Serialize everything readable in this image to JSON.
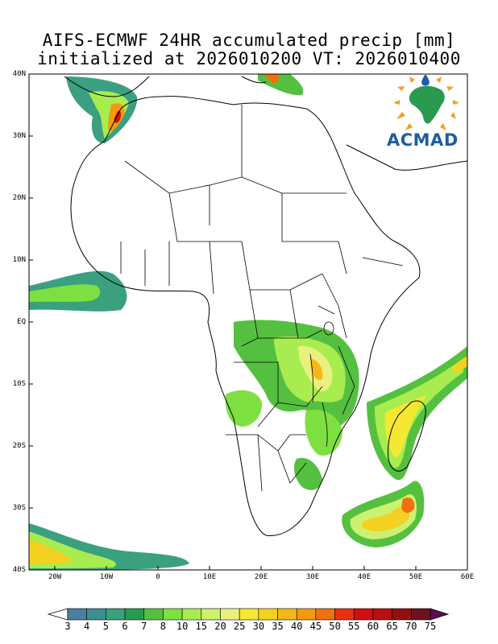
{
  "title_line1": "AIFS-ECMWF 24HR accumulated precip [mm]",
  "title_line2": "initialized at 2026010200 VT: 2026010400",
  "logo": {
    "text": "ACMAD",
    "icon": "acmad-africa-sun-logo"
  },
  "map": {
    "lon_range": [
      -25,
      60
    ],
    "lat_range": [
      -40,
      40
    ],
    "lat_labels": [
      "40N",
      "30N",
      "20N",
      "10N",
      "EQ",
      "10S",
      "20S",
      "30S",
      "40S"
    ],
    "lon_labels": [
      "20W",
      "10W",
      "0",
      "10E",
      "20E",
      "30E",
      "40E",
      "50E",
      "60E"
    ]
  },
  "colorbar": {
    "labels": [
      "3",
      "4",
      "5",
      "6",
      "7",
      "8",
      "10",
      "15",
      "20",
      "25",
      "30",
      "35",
      "40",
      "45",
      "50",
      "55",
      "60",
      "65",
      "70",
      "75"
    ],
    "colors": [
      "#ffffff",
      "#4a7fa0",
      "#3f8f90",
      "#3aa080",
      "#2a9a50",
      "#55c040",
      "#7de040",
      "#a8ec50",
      "#ccf070",
      "#eaf080",
      "#f4e830",
      "#f4d020",
      "#f4b818",
      "#f49a10",
      "#f07010",
      "#e83010",
      "#d01010",
      "#b81010",
      "#901010",
      "#701020",
      "#5a1050"
    ]
  }
}
